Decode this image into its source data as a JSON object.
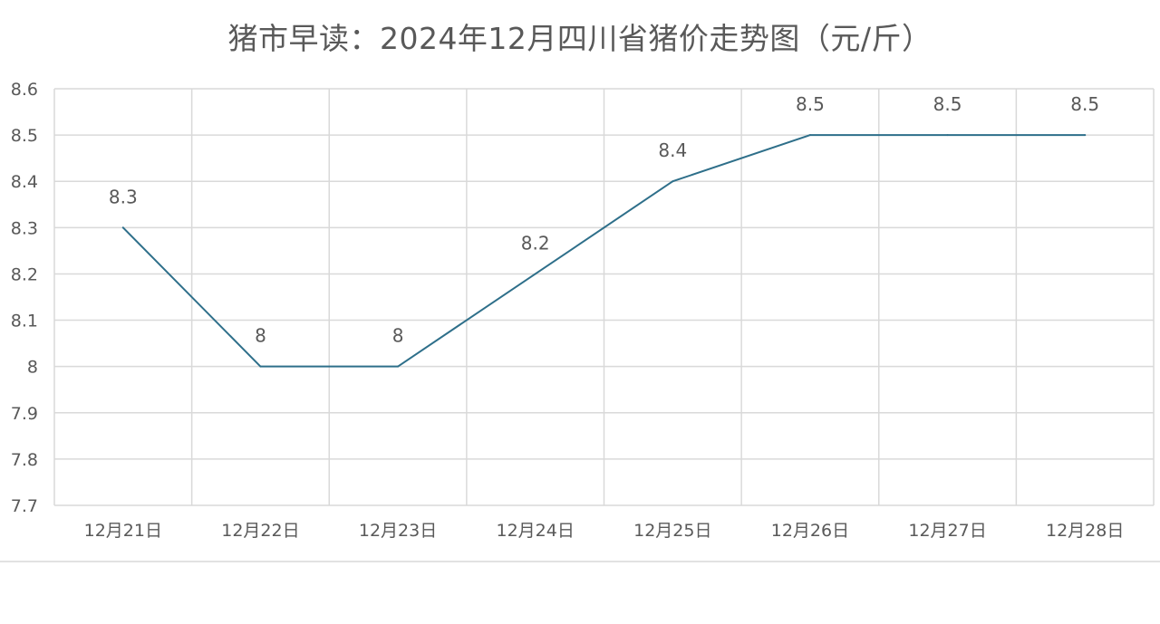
{
  "chart_data": {
    "type": "line",
    "title": "猪市早读：2024年12月四川省猪价走势图（元/斤）",
    "xlabel": "",
    "ylabel": "",
    "categories": [
      "12月21日",
      "12月22日",
      "12月23日",
      "12月24日",
      "12月25日",
      "12月26日",
      "12月27日",
      "12月28日"
    ],
    "series": [
      {
        "values": [
          8.3,
          8,
          8,
          8.2,
          8.4,
          8.5,
          8.5,
          8.5
        ],
        "data_labels": [
          "8.3",
          "8",
          "8",
          "8.2",
          "8.4",
          "8.5",
          "8.5",
          "8.5"
        ]
      }
    ],
    "ylim": [
      7.7,
      8.6
    ],
    "yticks": [
      "7.7",
      "7.8",
      "7.9",
      "8",
      "8.1",
      "8.2",
      "8.3",
      "8.4",
      "8.5",
      "8.6"
    ],
    "grid": true,
    "legend": "none",
    "colors": {
      "line": "#2e6f8a",
      "grid": "#d9d9d9",
      "axis_text": "#595959",
      "title_text": "#595959"
    }
  }
}
